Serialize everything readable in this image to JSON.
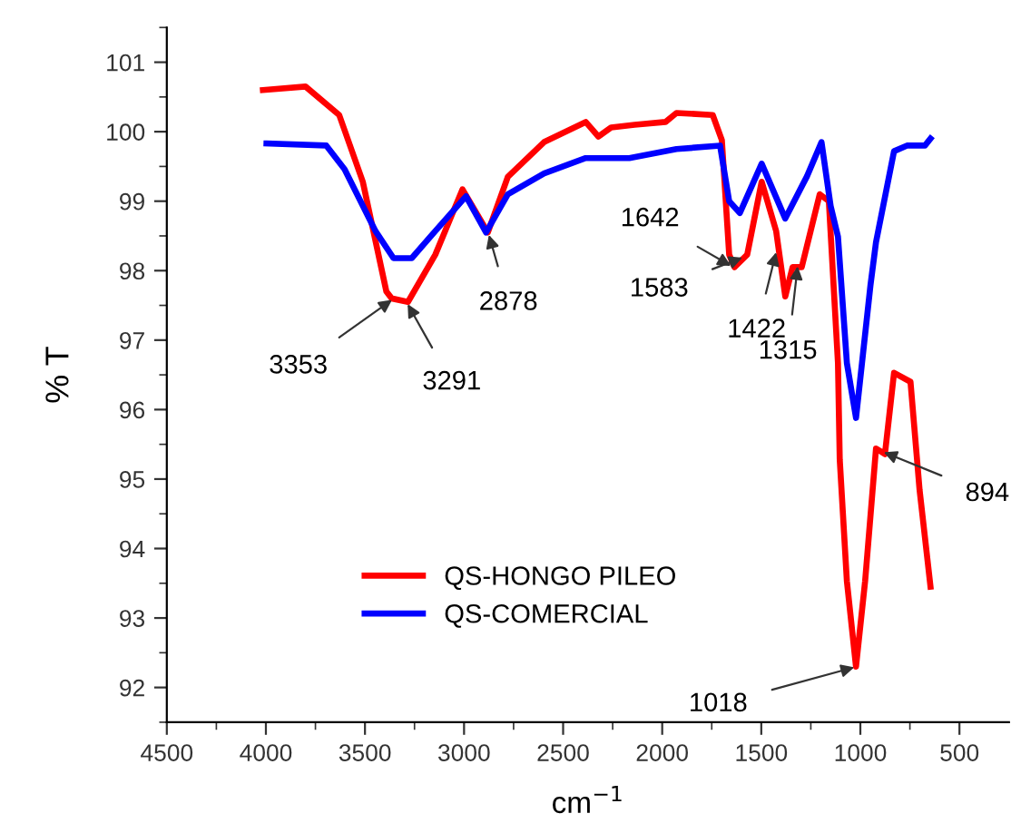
{
  "chart_data": {
    "type": "line",
    "xlabel": "cm$^{−1}$",
    "ylabel": "% T",
    "xlim": [
      4500,
      250
    ],
    "ylim": [
      91.5,
      101.5
    ],
    "xticks": [
      4500,
      {
        "value": 4250,
        "label": null
      },
      4000,
      {
        "value": 3750,
        "label": null
      },
      3500,
      {
        "value": 3250,
        "label": null
      },
      3000,
      {
        "value": 2750,
        "label": null
      },
      2500,
      {
        "value": 2250,
        "label": null
      },
      2000,
      {
        "value": 1750,
        "label": null
      },
      1500,
      {
        "value": 1250,
        "label": null
      },
      1000,
      {
        "value": 750,
        "label": null
      },
      500
    ],
    "yticks": [
      {
        "value": 91.5,
        "label": null
      },
      92,
      {
        "value": 92.5,
        "label": null
      },
      93,
      {
        "value": 93.5,
        "label": null
      },
      94,
      {
        "value": 94.5,
        "label": null
      },
      95,
      {
        "value": 95.5,
        "label": null
      },
      96,
      {
        "value": 96.5,
        "label": null
      },
      97,
      {
        "value": 97.5,
        "label": null
      },
      98,
      {
        "value": 98.5,
        "label": null
      },
      99,
      {
        "value": 99.5,
        "label": null
      },
      100,
      {
        "value": 100.5,
        "label": null
      },
      101,
      {
        "value": 101.5,
        "label": null
      }
    ],
    "grid": false,
    "legend": "bottom",
    "line_style": "solid",
    "marker": "none",
    "series": [
      {
        "name": "QS-HONGO PILEO",
        "color": "#ff0000",
        "x": [
          4015,
          3800,
          3630,
          3511,
          3392,
          3365,
          3283,
          3145,
          3008,
          2880,
          2779,
          2596,
          2386,
          2322,
          2258,
          2139,
          1983,
          1928,
          1745,
          1699,
          1662,
          1635,
          1571,
          1498,
          1425,
          1379,
          1342,
          1296,
          1205,
          1159,
          1113,
          1104,
          1068,
          1022,
          976,
          921,
          876,
          830,
          747,
          701,
          646
        ],
        "values": [
          100.6,
          100.65,
          100.24,
          99.28,
          97.7,
          97.6,
          97.55,
          98.23,
          99.17,
          98.55,
          99.35,
          99.85,
          100.14,
          99.93,
          100.06,
          100.1,
          100.14,
          100.27,
          100.24,
          99.88,
          98.23,
          98.05,
          98.23,
          99.28,
          98.57,
          97.63,
          98.05,
          98.05,
          99.1,
          99.0,
          96.67,
          95.28,
          93.53,
          92.3,
          93.53,
          95.44,
          95.36,
          96.53,
          96.4,
          94.84,
          93.45
        ]
      },
      {
        "name": "QS-COMERCIAL",
        "color": "#0000ff",
        "x": [
          3997,
          3695,
          3603,
          3447,
          3356,
          3264,
          3145,
          2990,
          2889,
          2779,
          2596,
          2386,
          2166,
          1928,
          1708,
          1662,
          1608,
          1498,
          1379,
          1269,
          1196,
          1150,
          1113,
          1068,
          1022,
          949,
          921,
          830,
          765,
          674,
          646
        ],
        "values": [
          99.83,
          99.8,
          99.46,
          98.57,
          98.18,
          98.18,
          98.57,
          99.07,
          98.55,
          99.1,
          99.4,
          99.62,
          99.62,
          99.75,
          99.8,
          99.0,
          98.83,
          99.54,
          98.75,
          99.36,
          99.85,
          98.93,
          98.49,
          96.67,
          95.88,
          97.79,
          98.41,
          99.72,
          99.8,
          99.8,
          99.9
        ]
      }
    ],
    "annotations": [
      {
        "text": "3353",
        "x": 3353,
        "y": 97.6
      },
      {
        "text": "3291",
        "x": 3291,
        "y": 97.55
      },
      {
        "text": "2878",
        "x": 2878,
        "y": 98.55
      },
      {
        "text": "1642",
        "x": 1642,
        "y": 98.05
      },
      {
        "text": "1583",
        "x": 1583,
        "y": 98.2
      },
      {
        "text": "1422",
        "x": 1422,
        "y": 98.3
      },
      {
        "text": "1315",
        "x": 1315,
        "y": 98.1
      },
      {
        "text": "1018",
        "x": 1018,
        "y": 92.3
      },
      {
        "text": "894",
        "x": 894,
        "y": 95.4
      }
    ]
  }
}
